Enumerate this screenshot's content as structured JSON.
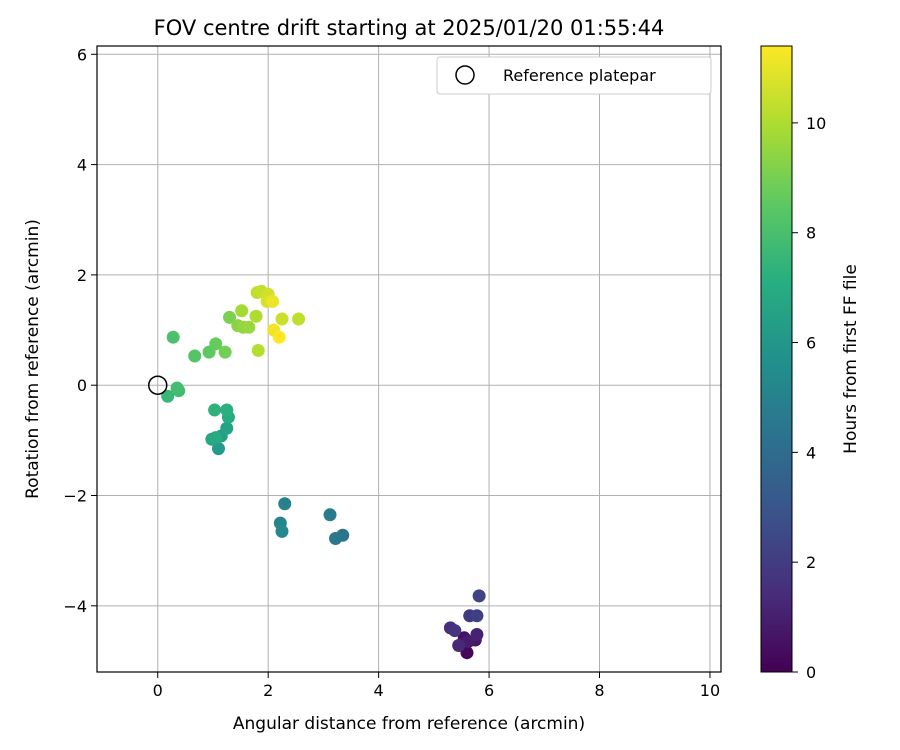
{
  "chart_data": {
    "type": "scatter",
    "title": "FOV centre drift starting at 2025/01/20 01:55:44",
    "xlabel": "Angular distance from reference (arcmin)",
    "ylabel": "Rotation from reference (arcmin)",
    "xlim": [
      -1.1,
      10.2
    ],
    "ylim": [
      -5.2,
      6.15
    ],
    "xticks": [
      0,
      2,
      4,
      6,
      8,
      10
    ],
    "yticks": [
      -4,
      -2,
      0,
      2,
      4,
      6
    ],
    "grid": true,
    "legend": {
      "location": "upper right",
      "entries": [
        {
          "label": "Reference platepar",
          "marker": "open-circle"
        }
      ]
    },
    "reference_point": {
      "x": 0.0,
      "y": 0.0
    },
    "colorbar": {
      "label": "Hours from first FF file",
      "colormap": "viridis",
      "range": [
        0,
        11.4
      ],
      "ticks": [
        0,
        2,
        4,
        6,
        8,
        10
      ]
    },
    "points": [
      {
        "x": 5.6,
        "y": -4.85,
        "c": 0.2
      },
      {
        "x": 5.55,
        "y": -4.58,
        "c": 0.5
      },
      {
        "x": 5.75,
        "y": -4.62,
        "c": 0.7
      },
      {
        "x": 5.62,
        "y": -4.65,
        "c": 0.9
      },
      {
        "x": 5.78,
        "y": -4.52,
        "c": 1.1
      },
      {
        "x": 5.45,
        "y": -4.72,
        "c": 1.3
      },
      {
        "x": 5.3,
        "y": -4.4,
        "c": 1.5
      },
      {
        "x": 5.38,
        "y": -4.45,
        "c": 1.7
      },
      {
        "x": 5.65,
        "y": -4.18,
        "c": 1.9
      },
      {
        "x": 5.78,
        "y": -4.18,
        "c": 2.1
      },
      {
        "x": 5.82,
        "y": -3.82,
        "c": 2.3
      },
      {
        "x": 3.35,
        "y": -2.72,
        "c": 4.3
      },
      {
        "x": 3.22,
        "y": -2.78,
        "c": 4.5
      },
      {
        "x": 3.12,
        "y": -2.35,
        "c": 4.7
      },
      {
        "x": 2.3,
        "y": -2.15,
        "c": 4.9
      },
      {
        "x": 2.22,
        "y": -2.5,
        "c": 5.1
      },
      {
        "x": 2.25,
        "y": -2.65,
        "c": 5.3
      },
      {
        "x": 1.1,
        "y": -1.15,
        "c": 6.2
      },
      {
        "x": 1.15,
        "y": -0.92,
        "c": 6.4
      },
      {
        "x": 1.25,
        "y": -0.78,
        "c": 6.6
      },
      {
        "x": 0.98,
        "y": -0.98,
        "c": 6.8
      },
      {
        "x": 1.05,
        "y": -0.95,
        "c": 6.9
      },
      {
        "x": 1.28,
        "y": -0.58,
        "c": 7.0
      },
      {
        "x": 1.25,
        "y": -0.45,
        "c": 7.2
      },
      {
        "x": 1.03,
        "y": -0.45,
        "c": 7.3
      },
      {
        "x": 0.18,
        "y": -0.2,
        "c": 7.6
      },
      {
        "x": 0.38,
        "y": -0.1,
        "c": 7.8
      },
      {
        "x": 0.35,
        "y": -0.05,
        "c": 7.9
      },
      {
        "x": 0.28,
        "y": 0.87,
        "c": 8.1
      },
      {
        "x": 0.67,
        "y": 0.53,
        "c": 8.3
      },
      {
        "x": 0.93,
        "y": 0.6,
        "c": 8.5
      },
      {
        "x": 1.05,
        "y": 0.75,
        "c": 8.7
      },
      {
        "x": 1.22,
        "y": 0.6,
        "c": 8.9
      },
      {
        "x": 1.3,
        "y": 1.23,
        "c": 9.1
      },
      {
        "x": 1.45,
        "y": 1.08,
        "c": 9.3
      },
      {
        "x": 1.55,
        "y": 1.05,
        "c": 9.5
      },
      {
        "x": 1.65,
        "y": 1.05,
        "c": 9.6
      },
      {
        "x": 1.52,
        "y": 1.35,
        "c": 9.8
      },
      {
        "x": 1.78,
        "y": 1.25,
        "c": 10.0
      },
      {
        "x": 1.82,
        "y": 0.63,
        "c": 10.1
      },
      {
        "x": 1.8,
        "y": 1.68,
        "c": 10.3
      },
      {
        "x": 1.88,
        "y": 1.7,
        "c": 10.4
      },
      {
        "x": 2.0,
        "y": 1.65,
        "c": 10.6
      },
      {
        "x": 1.98,
        "y": 1.52,
        "c": 10.7
      },
      {
        "x": 2.25,
        "y": 1.2,
        "c": 10.5
      },
      {
        "x": 2.55,
        "y": 1.2,
        "c": 10.3
      },
      {
        "x": 2.08,
        "y": 1.52,
        "c": 11.1
      },
      {
        "x": 2.1,
        "y": 1.0,
        "c": 11.2
      },
      {
        "x": 2.2,
        "y": 0.87,
        "c": 11.4
      }
    ]
  }
}
